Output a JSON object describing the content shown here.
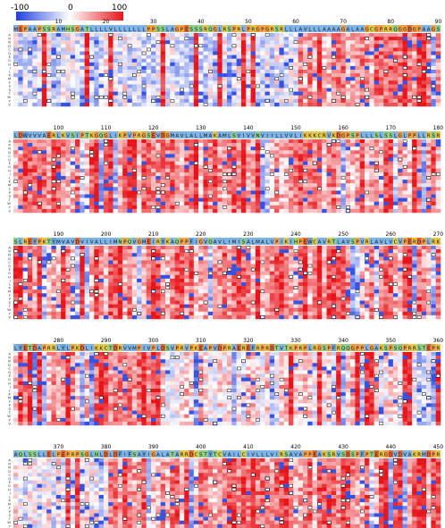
{
  "colorbar": {
    "labels": [
      "-100",
      "0",
      "100"
    ],
    "min": -100,
    "max": 100,
    "colors": {
      "negative": "#1f3fe0",
      "neutral": "#ffffff",
      "positive": "#e8141a"
    }
  },
  "chart_data": {
    "type": "heatmap",
    "title": "",
    "value_range": [
      -100,
      100
    ],
    "row_labels": [
      "A",
      "R",
      "N",
      "D",
      "C",
      "Q",
      "E",
      "G",
      "H",
      "I",
      "L",
      "K",
      "M",
      "F",
      "P",
      "S",
      "T",
      "W",
      "Y",
      "V"
    ],
    "panels": [
      {
        "start": 1,
        "end": 90,
        "ticks": [
          "10",
          "20",
          "30",
          "40",
          "50",
          "60",
          "70",
          "80",
          "90"
        ],
        "sequence": "MEPAAPSSRAMHSGATLLLLVLLLLLLLPPSSLAGPESSSRQGLRSPRLPRGPGRSRLLLAVLLLAAAAGALAAGCGPRRQGGDGPAAGSW"
      },
      {
        "start": 91,
        "end": 180,
        "ticks": [
          "100",
          "110",
          "120",
          "130",
          "140",
          "150",
          "160",
          "170",
          "180"
        ],
        "sequence": "LDWVVVAERLKVSIPTKGQGLIKPVPRGSEVDGMAVLALLMAKAMLSVIVVNVIILLVVLIKKKCRVKDGPSPLLLSLSSLGLPPLLRSRE"
      },
      {
        "start": 181,
        "end": 270,
        "ticks": [
          "190",
          "200",
          "210",
          "220",
          "230",
          "240",
          "250",
          "260",
          "270"
        ],
        "sequence": "SLREYPKTYMVAVDVIVALLIMNPQVGMEIRYKAQPPFIGVQAVLIMISALMALVPIKIHPEWCAVRTLAVSPVRLAVLVCVPERDPLRK"
      },
      {
        "start": 271,
        "end": 360,
        "ticks": [
          "280",
          "290",
          "300",
          "310",
          "320",
          "330",
          "340",
          "350",
          "360"
        ],
        "sequence": "LYETDAPRRLYLPKDLIKKCTDRVVMPIVPLDSVPRVPKEAPVDPRAEREFRPRDTVTKPRPLRGSPFRQQGPPLGAKSPSQPRRSTEPR"
      },
      {
        "start": 361,
        "end": 450,
        "ticks": [
          "370",
          "380",
          "390",
          "400",
          "410",
          "420",
          "430",
          "440",
          "450"
        ],
        "sequence": "AQLSSLLELPEPRPSGLNLDLDFIFSAYIGALATARRDCSTYTCVAILCIVLLLVIRSAVAPPEAKSRVSDSPFPTERGDVDVAKRMDPR"
      }
    ]
  }
}
